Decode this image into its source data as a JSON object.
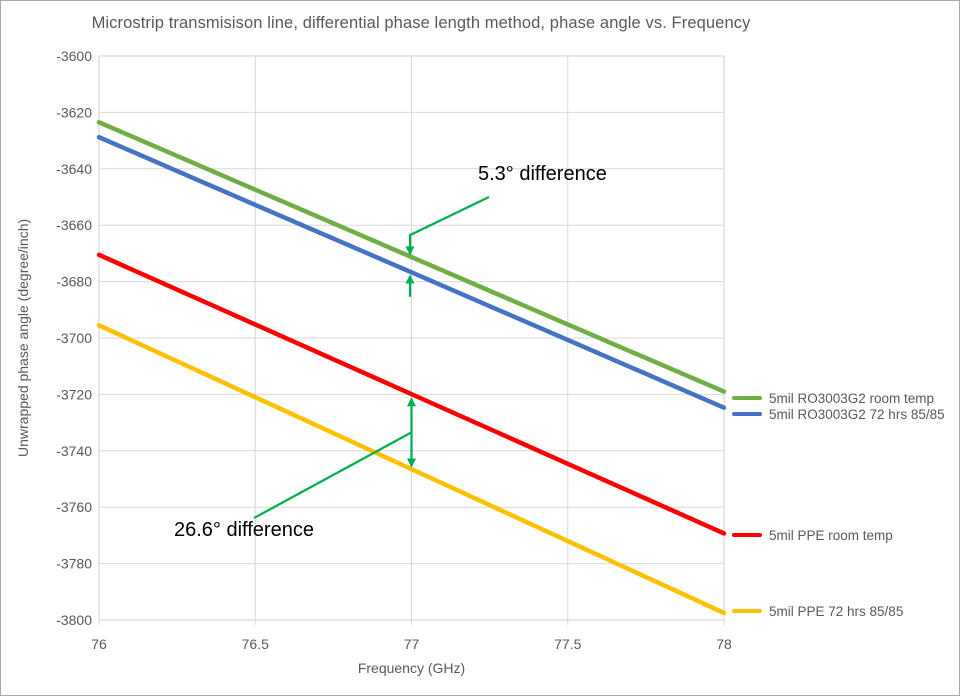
{
  "chart_data": {
    "type": "line",
    "title": "Microstrip transmisison line, differential phase length method, phase angle vs. Frequency",
    "xlabel": "Frequency (GHz)",
    "ylabel": "Unwrapped phase angle (degree/inch)",
    "x": [
      76,
      76.5,
      77,
      77.5,
      78
    ],
    "x_ticks": [
      76,
      76.5,
      77,
      77.5,
      78
    ],
    "y_ticks": [
      -3600,
      -3620,
      -3640,
      -3660,
      -3680,
      -3700,
      -3720,
      -3740,
      -3760,
      -3780,
      -3800
    ],
    "xlim": [
      76,
      78
    ],
    "ylim": [
      -3800,
      -3600
    ],
    "grid": true,
    "legend_position": "right",
    "series": [
      {
        "name": "5mil RO3003G2 room temp",
        "color": "#70AD47",
        "values": [
          -3623.5,
          -3647.4,
          -3671.3,
          -3695.2,
          -3719.0
        ]
      },
      {
        "name": "5mil RO3003G2 72 hrs 85/85",
        "color": "#4472C4",
        "values": [
          -3628.8,
          -3652.8,
          -3676.7,
          -3700.7,
          -3724.7
        ]
      },
      {
        "name": "5mil PPE room temp",
        "color": "#FF0000",
        "values": [
          -3670.5,
          -3695.2,
          -3719.9,
          -3744.6,
          -3769.3
        ]
      },
      {
        "name": "5mil PPE 72 hrs 85/85",
        "color": "#FFC000",
        "values": [
          -3695.5,
          -3721.0,
          -3746.5,
          -3772.0,
          -3797.5
        ]
      }
    ],
    "annotations": [
      {
        "text": "5.3° difference",
        "between": [
          "5mil RO3003G2 room temp",
          "5mil RO3003G2 72 hrs 85/85"
        ],
        "at_x": 77,
        "arrow_color": "#00B050"
      },
      {
        "text": "26.6° difference",
        "between": [
          "5mil PPE room temp",
          "5mil PPE 72 hrs 85/85"
        ],
        "at_x": 77,
        "arrow_color": "#00B050"
      }
    ]
  }
}
